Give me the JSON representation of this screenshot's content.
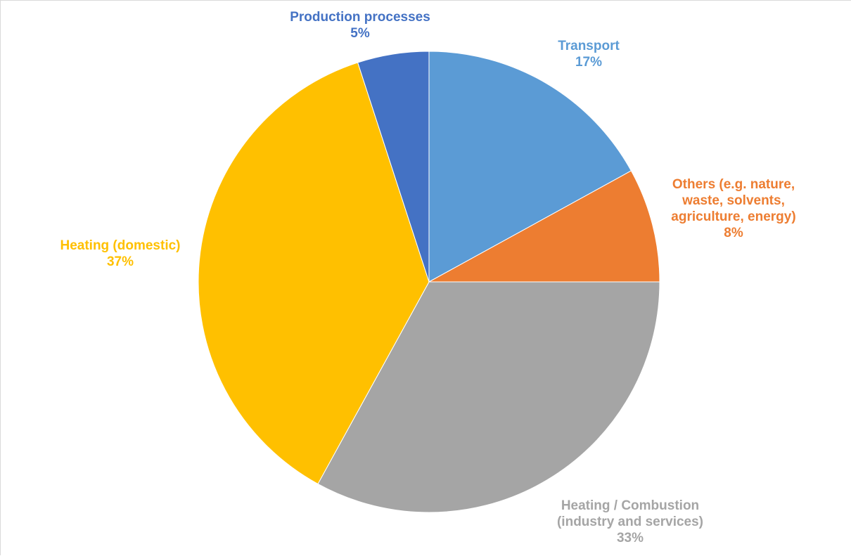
{
  "chart_data": {
    "type": "pie",
    "title": "",
    "start_angle_deg": 0,
    "direction": "clockwise",
    "slices": [
      {
        "label_lines": [
          "Transport"
        ],
        "value": 17,
        "value_label": "17%",
        "color": "#5B9BD5"
      },
      {
        "label_lines": [
          "Others (e.g. nature,",
          "waste, solvents,",
          "agriculture, energy)"
        ],
        "value": 8,
        "value_label": "8%",
        "color": "#ED7D31"
      },
      {
        "label_lines": [
          "Heating / Combustion",
          "(industry and services)"
        ],
        "value": 33,
        "value_label": "33%",
        "color": "#A5A5A5"
      },
      {
        "label_lines": [
          "Heating (domestic)"
        ],
        "value": 37,
        "value_label": "37%",
        "color": "#FFC000"
      },
      {
        "label_lines": [
          "Production processes"
        ],
        "value": 5,
        "value_label": "5%",
        "color": "#4472C4"
      }
    ],
    "legend": "none",
    "data_labels": "category and percentage, outside end"
  }
}
